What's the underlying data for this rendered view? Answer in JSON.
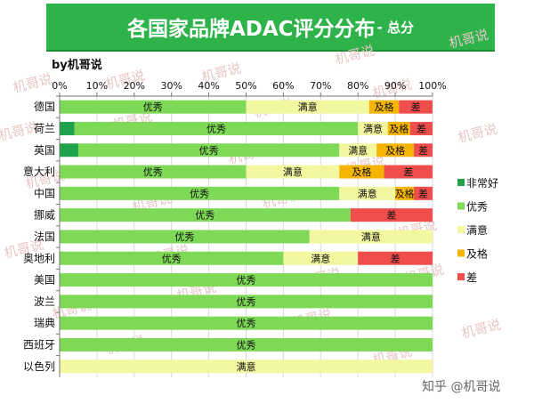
{
  "title": "各国家品牌ADAC评分分布",
  "subtitle": "- 总分",
  "byline": "by机哥说",
  "watermark": "机哥说",
  "footer": "知乎 @机哥说",
  "chart_data": {
    "type": "bar",
    "orientation": "horizontal",
    "stacked": true,
    "normalized": true,
    "x_axis_position": "top",
    "xlim": [
      0,
      100
    ],
    "x_ticks": [
      "0%",
      "10%",
      "20%",
      "30%",
      "40%",
      "50%",
      "60%",
      "70%",
      "80%",
      "90%",
      "100%"
    ],
    "legend_position": "right",
    "grid": true,
    "categories": [
      "德国",
      "荷兰",
      "英国",
      "意大利",
      "中国",
      "挪威",
      "法国",
      "奥地利",
      "美国",
      "波兰",
      "瑞典",
      "西班牙",
      "以色列"
    ],
    "series": [
      {
        "name": "非常好",
        "color": "#1ea34a",
        "values": [
          0,
          4,
          5,
          0,
          0,
          0,
          0,
          0,
          0,
          0,
          0,
          0,
          0
        ]
      },
      {
        "name": "优秀",
        "color": "#7ed957",
        "values": [
          50,
          76,
          70,
          50,
          75,
          78,
          67,
          60,
          100,
          100,
          100,
          100,
          0
        ]
      },
      {
        "name": "满意",
        "color": "#f2f7a0",
        "values": [
          33,
          8,
          10,
          25,
          15,
          0,
          33,
          20,
          0,
          0,
          0,
          0,
          100
        ]
      },
      {
        "name": "及格",
        "color": "#f4b400",
        "values": [
          8,
          6,
          10,
          12,
          5,
          0,
          0,
          0,
          0,
          0,
          0,
          0,
          0
        ]
      },
      {
        "name": "差",
        "color": "#f04d4d",
        "values": [
          9,
          6,
          5,
          13,
          5,
          22,
          0,
          20,
          0,
          0,
          0,
          0,
          0
        ]
      }
    ]
  }
}
